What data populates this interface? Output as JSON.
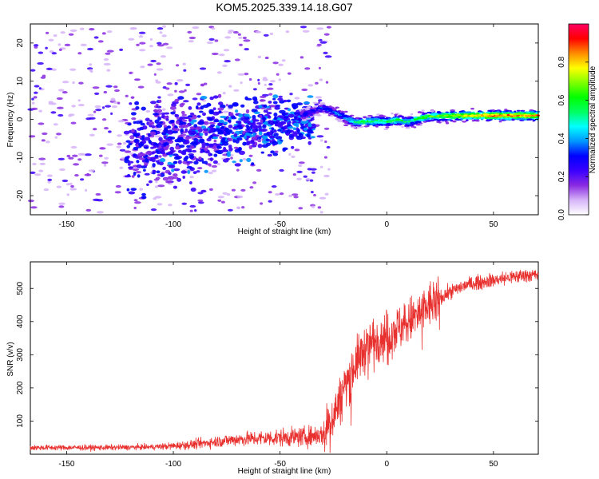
{
  "title": "KOM5.2025.339.14.18.G07",
  "chart_data": [
    {
      "type": "heatmap",
      "name": "spectrogram",
      "xlabel": "Height of straight line (km)",
      "ylabel": "Frequency (Hz)",
      "xlim": [
        -167,
        71
      ],
      "ylim": [
        -25,
        25
      ],
      "xticks": [
        -150,
        -100,
        -50,
        0,
        50
      ],
      "yticks": [
        -20,
        -10,
        0,
        10,
        20
      ],
      "colorbar": {
        "label": "Normalized spectral amplitude",
        "range": [
          0,
          1
        ],
        "ticks": [
          0.0,
          0.2,
          0.4,
          0.6,
          0.8
        ],
        "colors": [
          "#ffffff",
          "#d6b4f8",
          "#8a2be2",
          "#3a00ff",
          "#0000ff",
          "#0096ff",
          "#00ffff",
          "#00ff64",
          "#00ff00",
          "#7fff00",
          "#ffff00",
          "#ff8c00",
          "#ff0000",
          "#ff0064"
        ]
      },
      "ridge": [
        {
          "x": -40,
          "f": 1.0,
          "amp": 0.3
        },
        {
          "x": -35,
          "f": 2.0,
          "amp": 0.32
        },
        {
          "x": -30,
          "f": 3.0,
          "amp": 0.35
        },
        {
          "x": -25,
          "f": 2.0,
          "amp": 0.36
        },
        {
          "x": -20,
          "f": 0.5,
          "amp": 0.4
        },
        {
          "x": -15,
          "f": -0.8,
          "amp": 0.55
        },
        {
          "x": -10,
          "f": -0.6,
          "amp": 0.6
        },
        {
          "x": -5,
          "f": -0.5,
          "amp": 0.62
        },
        {
          "x": 0,
          "f": -0.6,
          "amp": 0.6
        },
        {
          "x": 5,
          "f": -0.2,
          "amp": 0.62
        },
        {
          "x": 10,
          "f": -0.7,
          "amp": 0.55
        },
        {
          "x": 15,
          "f": 0.2,
          "amp": 0.62
        },
        {
          "x": 20,
          "f": 0.8,
          "amp": 0.68
        },
        {
          "x": 30,
          "f": 0.9,
          "amp": 0.75
        },
        {
          "x": 40,
          "f": 1.0,
          "amp": 0.82
        },
        {
          "x": 50,
          "f": 1.0,
          "amp": 0.9
        },
        {
          "x": 60,
          "f": 1.0,
          "amp": 0.9
        },
        {
          "x": 70,
          "f": 1.0,
          "amp": 0.88
        }
      ]
    },
    {
      "type": "line",
      "name": "snr",
      "xlabel": "Height of straight line (km)",
      "ylabel": "SNR (v/v)",
      "xlim": [
        -167,
        71
      ],
      "ylim": [
        0,
        580
      ],
      "xticks": [
        -150,
        -100,
        -50,
        0,
        50
      ],
      "yticks": [
        100,
        200,
        300,
        400,
        500
      ],
      "color": "#e8312f",
      "series": [
        {
          "name": "SNR",
          "x": [
            -167,
            -150,
            -130,
            -110,
            -100,
            -90,
            -80,
            -70,
            -60,
            -50,
            -40,
            -35,
            -30,
            -28,
            -25,
            -22,
            -20,
            -18,
            -15,
            -12,
            -10,
            -5,
            0,
            5,
            10,
            15,
            20,
            25,
            30,
            35,
            40,
            45,
            50,
            55,
            60,
            65,
            71
          ],
          "values": [
            20,
            20,
            20,
            22,
            25,
            30,
            38,
            45,
            48,
            50,
            52,
            55,
            60,
            80,
            120,
            160,
            200,
            230,
            270,
            300,
            320,
            350,
            360,
            380,
            400,
            420,
            450,
            470,
            490,
            505,
            515,
            520,
            525,
            530,
            535,
            540,
            540
          ]
        }
      ]
    }
  ]
}
